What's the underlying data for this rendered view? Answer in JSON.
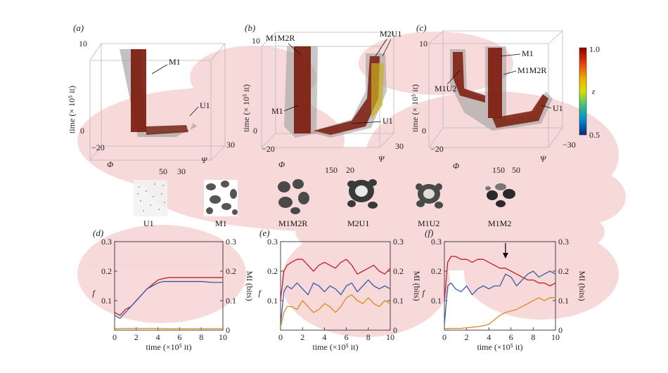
{
  "panels_3d": [
    {
      "label": "(a)",
      "zlabel": "time (× 10⁵ it)",
      "z_ticks": [
        "0",
        "10"
      ],
      "phi_label": "Φ",
      "phi_ticks": [
        "−20",
        "50"
      ],
      "psi_label": "Ψ",
      "psi_ticks": [
        "30",
        "30"
      ],
      "annotations": [
        "M1",
        "U1"
      ]
    },
    {
      "label": "(b)",
      "zlabel": "time (× 10⁵ it)",
      "z_ticks": [
        "0",
        "10"
      ],
      "phi_label": "Φ",
      "phi_ticks": [
        "−20",
        "150"
      ],
      "psi_label": "Ψ",
      "psi_ticks": [
        "20",
        "30"
      ],
      "annotations": [
        "M1M2R",
        "M2U1",
        "M1",
        "U1"
      ]
    },
    {
      "label": "(c)",
      "zlabel": "time (× 10⁵ it)",
      "z_ticks": [
        "0",
        "10"
      ],
      "phi_label": "Φ",
      "phi_ticks": [
        "−20",
        "150"
      ],
      "psi_label": "Ψ",
      "psi_ticks": [
        "50",
        "−30"
      ],
      "annotations": [
        "M1",
        "M1M2R",
        "M1U2",
        "U1"
      ]
    }
  ],
  "colorbar": {
    "label": "ε",
    "max_label": "1.0",
    "min_label": "0.5",
    "stops": [
      "#8b0000",
      "#e8400a",
      "#f0b000",
      "#d8e000",
      "#40c080",
      "#0090d0",
      "#002a80"
    ]
  },
  "patterns": [
    "U1",
    "M1",
    "M1M2R",
    "M2U1",
    "M1U2",
    "M1M2"
  ],
  "colors": {
    "f": "#c0202c",
    "mi_blue": "#3a5ca8",
    "mi_orange": "#e08a18",
    "blob": "#f4c6c6"
  },
  "chart_data": [
    {
      "label": "(d)",
      "type": "line",
      "xlabel": "time (×10⁵ it)",
      "ylabel_left": "f",
      "ylabel_right": "MI (bits)",
      "xlim": [
        0,
        10
      ],
      "ylim": [
        0,
        0.3
      ],
      "x_ticks": [
        "0",
        "2",
        "4",
        "6",
        "8",
        "10"
      ],
      "y_ticks_left": [
        "0.1",
        "0.2",
        "0.3"
      ],
      "y_ticks_right": [
        "0",
        "0.1",
        "0.2",
        "0.3"
      ],
      "series": [
        {
          "color": "#c0202c",
          "x": [
            0,
            0.5,
            1,
            1.5,
            2,
            2.5,
            3,
            3.5,
            4,
            4.5,
            5,
            6,
            7,
            8,
            9,
            10
          ],
          "y": [
            0.06,
            0.05,
            0.07,
            0.08,
            0.1,
            0.12,
            0.14,
            0.155,
            0.17,
            0.175,
            0.178,
            0.178,
            0.178,
            0.178,
            0.178,
            0.178
          ]
        },
        {
          "color": "#3a5ca8",
          "x": [
            0,
            0.5,
            1,
            1.5,
            2,
            2.5,
            3,
            3.5,
            4,
            4.5,
            5,
            6,
            7,
            8,
            9,
            10
          ],
          "y": [
            0.05,
            0.04,
            0.06,
            0.08,
            0.1,
            0.12,
            0.14,
            0.15,
            0.16,
            0.165,
            0.165,
            0.165,
            0.165,
            0.165,
            0.162,
            0.162
          ]
        },
        {
          "color": "#e08a18",
          "x": [
            0,
            1,
            2,
            3,
            4,
            5,
            6,
            7,
            8,
            9,
            10
          ],
          "y": [
            0.005,
            0.006,
            0.006,
            0.006,
            0.006,
            0.005,
            0.005,
            0.005,
            0.005,
            0.005,
            0.005
          ]
        }
      ]
    },
    {
      "label": "(e)",
      "type": "line",
      "xlabel": "time (×10⁵ it)",
      "ylabel_left": "f",
      "ylabel_right": "MI (bits)",
      "xlim": [
        0,
        10
      ],
      "ylim": [
        0,
        0.3
      ],
      "x_ticks": [
        "0",
        "2",
        "4",
        "6",
        "8",
        "10"
      ],
      "y_ticks_left": [
        "0.1",
        "0.2",
        "0.3"
      ],
      "y_ticks_right": [
        "0",
        "0.1",
        "0.2",
        "0.3"
      ],
      "series": [
        {
          "color": "#c0202c",
          "x": [
            0,
            0.3,
            0.6,
            1,
            1.5,
            2,
            2.5,
            3,
            3.5,
            4,
            4.5,
            5,
            5.5,
            6,
            6.5,
            7,
            7.5,
            8,
            8.5,
            9,
            9.5,
            10
          ],
          "y": [
            0.1,
            0.2,
            0.22,
            0.23,
            0.24,
            0.24,
            0.22,
            0.2,
            0.22,
            0.23,
            0.22,
            0.21,
            0.23,
            0.24,
            0.22,
            0.19,
            0.2,
            0.21,
            0.22,
            0.2,
            0.19,
            0.21
          ]
        },
        {
          "color": "#3a5ca8",
          "x": [
            0,
            0.3,
            0.6,
            1,
            1.5,
            2,
            2.5,
            3,
            3.5,
            4,
            4.5,
            5,
            5.5,
            6,
            6.5,
            7,
            7.5,
            8,
            8.5,
            9,
            9.5,
            10
          ],
          "y": [
            0.02,
            0.13,
            0.15,
            0.14,
            0.16,
            0.14,
            0.12,
            0.16,
            0.15,
            0.13,
            0.15,
            0.14,
            0.12,
            0.15,
            0.16,
            0.13,
            0.15,
            0.17,
            0.15,
            0.14,
            0.15,
            0.14
          ]
        },
        {
          "color": "#e08a18",
          "x": [
            0,
            0.3,
            0.6,
            1,
            1.5,
            2,
            2.5,
            3,
            3.5,
            4,
            4.5,
            5,
            5.5,
            6,
            6.5,
            7,
            7.5,
            8,
            8.5,
            9,
            9.5,
            10
          ],
          "y": [
            0.01,
            0.06,
            0.08,
            0.08,
            0.07,
            0.1,
            0.08,
            0.06,
            0.07,
            0.09,
            0.08,
            0.06,
            0.08,
            0.11,
            0.12,
            0.1,
            0.09,
            0.11,
            0.09,
            0.08,
            0.1,
            0.09
          ]
        }
      ]
    },
    {
      "label": "(f)",
      "type": "line",
      "xlabel": "time (×10⁵ it)",
      "ylabel_left": "f",
      "ylabel_right": "MI (bits)",
      "xlim": [
        0,
        10
      ],
      "ylim": [
        0,
        0.3
      ],
      "x_ticks": [
        "0",
        "2",
        "4",
        "6",
        "8",
        "10"
      ],
      "y_ticks_left": [
        "0.1",
        "0.2",
        "0.3"
      ],
      "y_ticks_right": [
        "0",
        "0.1",
        "0.2",
        "0.3"
      ],
      "arrow_at_x": 5.5,
      "series": [
        {
          "color": "#c0202c",
          "x": [
            0,
            0.3,
            0.6,
            1,
            1.5,
            2,
            2.5,
            3,
            3.5,
            4,
            4.5,
            5,
            5.5,
            6,
            6.5,
            7,
            7.5,
            8,
            8.5,
            9,
            9.5,
            10
          ],
          "y": [
            0.1,
            0.23,
            0.25,
            0.25,
            0.24,
            0.24,
            0.23,
            0.24,
            0.24,
            0.23,
            0.22,
            0.21,
            0.21,
            0.2,
            0.19,
            0.18,
            0.17,
            0.17,
            0.16,
            0.16,
            0.15,
            0.16
          ]
        },
        {
          "color": "#3a5ca8",
          "x": [
            0,
            0.3,
            0.6,
            1,
            1.5,
            2,
            2.5,
            3,
            3.5,
            4,
            4.5,
            5,
            5.5,
            6,
            6.5,
            7,
            7.5,
            8,
            8.5,
            9,
            9.5,
            10
          ],
          "y": [
            0.02,
            0.15,
            0.16,
            0.14,
            0.13,
            0.15,
            0.12,
            0.14,
            0.15,
            0.14,
            0.15,
            0.15,
            0.19,
            0.18,
            0.15,
            0.17,
            0.19,
            0.2,
            0.18,
            0.19,
            0.2,
            0.19
          ]
        },
        {
          "color": "#e08a18",
          "x": [
            0,
            0.5,
            1,
            1.5,
            2,
            2.5,
            3,
            3.5,
            4,
            4.5,
            5,
            5.5,
            6,
            6.5,
            7,
            7.5,
            8,
            8.5,
            9,
            9.5,
            10
          ],
          "y": [
            0.005,
            0.006,
            0.006,
            0.006,
            0.008,
            0.01,
            0.012,
            0.015,
            0.02,
            0.035,
            0.05,
            0.06,
            0.065,
            0.07,
            0.08,
            0.09,
            0.1,
            0.11,
            0.1,
            0.11,
            0.11
          ]
        }
      ]
    }
  ]
}
